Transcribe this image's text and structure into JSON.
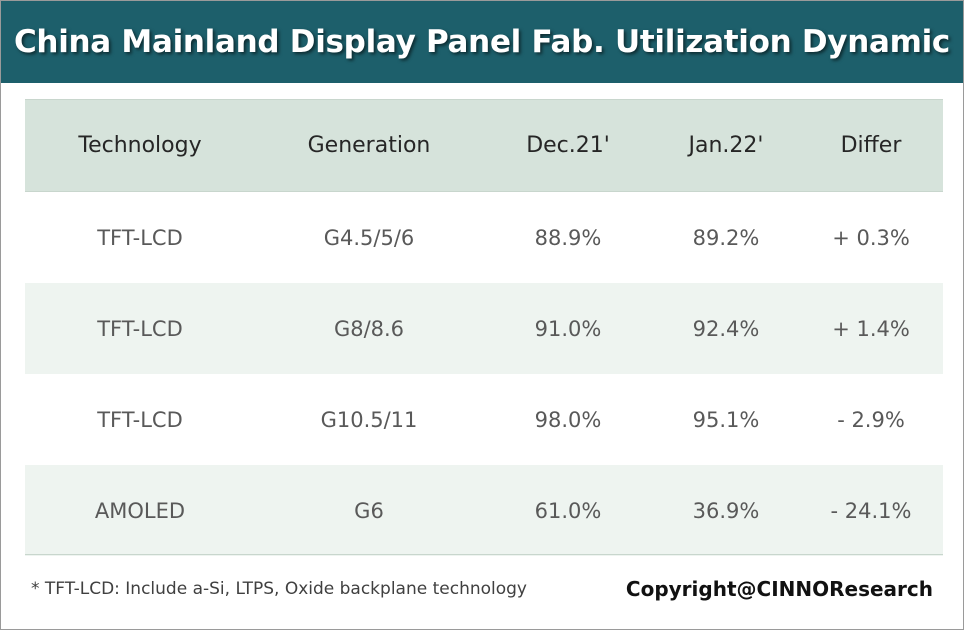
{
  "colors": {
    "title_bar": "#1d5f6b",
    "title_text": "#ffffff",
    "header_row": "#d6e3db",
    "alt_row": "#eef4f0",
    "body_text": "#595959"
  },
  "chart_data": {
    "type": "table",
    "title": "China Mainland Display Panel Fab. Utilization Dynamic",
    "columns": [
      "Technology",
      "Generation",
      "Dec.21'",
      "Jan.22'",
      "Differ"
    ],
    "rows": [
      [
        "TFT-LCD",
        "G4.5/5/6",
        "88.9%",
        "89.2%",
        "+ 0.3%"
      ],
      [
        "TFT-LCD",
        "G8/8.6",
        "91.0%",
        "92.4%",
        "+ 1.4%"
      ],
      [
        "TFT-LCD",
        "G10.5/11",
        "98.0%",
        "95.1%",
        "- 2.9%"
      ],
      [
        "AMOLED",
        "G6",
        "61.0%",
        "36.9%",
        "- 24.1%"
      ]
    ],
    "footnote": "* TFT-LCD: Include a-Si, LTPS, Oxide backplane technology",
    "copyright": "Copyright@CINNOResearch"
  }
}
